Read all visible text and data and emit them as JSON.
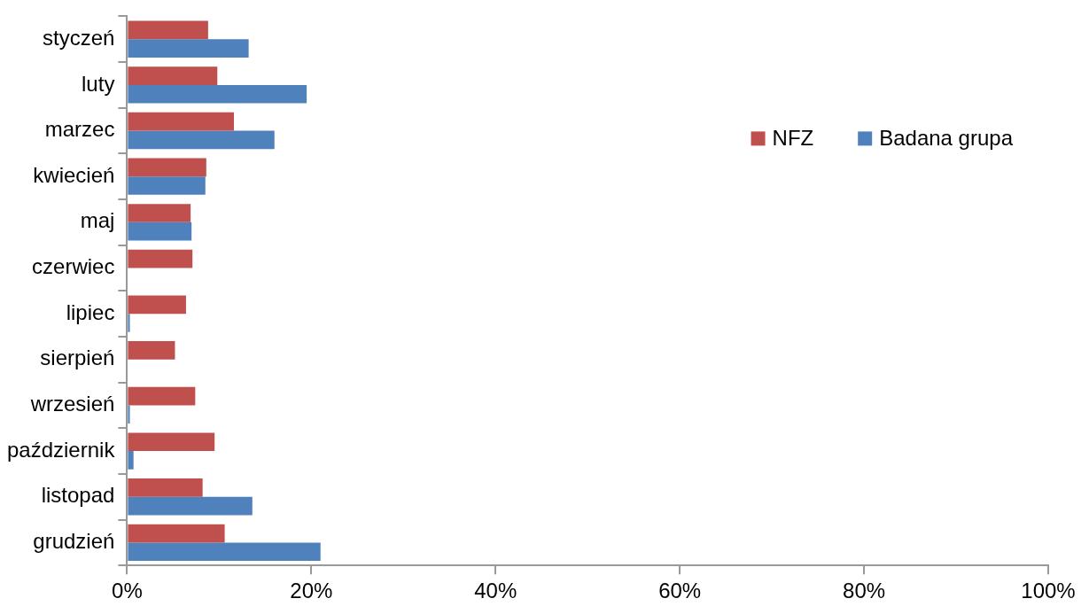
{
  "chart_data": {
    "type": "bar",
    "orientation": "horizontal",
    "categories": [
      "styczeń",
      "luty",
      "marzec",
      "kwiecień",
      "maj",
      "czerwiec",
      "lipiec",
      "sierpień",
      "wrzesień",
      "październik",
      "listopad",
      "grudzień"
    ],
    "series": [
      {
        "name": "NFZ",
        "color": "#c0504d",
        "values": [
          8.8,
          9.8,
          11.6,
          8.6,
          6.9,
          7.1,
          6.4,
          5.2,
          7.4,
          9.5,
          8.2,
          10.6
        ]
      },
      {
        "name": "Badana grupa",
        "color": "#4f81bd",
        "values": [
          13.2,
          19.5,
          16.0,
          8.5,
          7.0,
          0,
          0.3,
          0,
          0.3,
          0.7,
          13.6,
          21.0
        ]
      }
    ],
    "xlim": [
      0,
      100
    ],
    "xticks": [
      {
        "value": 0,
        "label": "0%"
      },
      {
        "value": 20,
        "label": "20%"
      },
      {
        "value": 40,
        "label": "40%"
      },
      {
        "value": 60,
        "label": "60%"
      },
      {
        "value": 80,
        "label": "80%"
      },
      {
        "value": 100,
        "label": "100%"
      }
    ],
    "grid": false,
    "legend": "top right"
  }
}
